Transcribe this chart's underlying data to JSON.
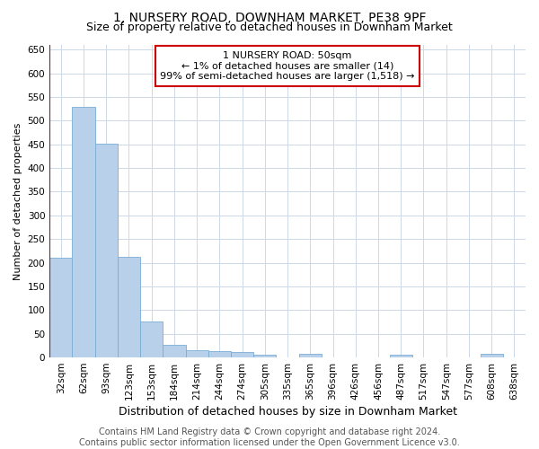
{
  "title": "1, NURSERY ROAD, DOWNHAM MARKET, PE38 9PF",
  "subtitle": "Size of property relative to detached houses in Downham Market",
  "xlabel": "Distribution of detached houses by size in Downham Market",
  "ylabel": "Number of detached properties",
  "categories": [
    "32sqm",
    "62sqm",
    "93sqm",
    "123sqm",
    "153sqm",
    "184sqm",
    "214sqm",
    "244sqm",
    "274sqm",
    "305sqm",
    "335sqm",
    "365sqm",
    "396sqm",
    "426sqm",
    "456sqm",
    "487sqm",
    "517sqm",
    "547sqm",
    "577sqm",
    "608sqm",
    "638sqm"
  ],
  "values": [
    210,
    530,
    452,
    213,
    76,
    27,
    16,
    14,
    11,
    5,
    0,
    8,
    0,
    0,
    0,
    6,
    0,
    0,
    0,
    7,
    0
  ],
  "bar_color": "#b8d0ea",
  "bar_edge_color": "#7aadd4",
  "vline_color": "#cc0000",
  "annotation_box_text": "1 NURSERY ROAD: 50sqm\n← 1% of detached houses are smaller (14)\n99% of semi-detached houses are larger (1,518) →",
  "box_edge_color": "#cc0000",
  "ylim": [
    0,
    660
  ],
  "yticks": [
    0,
    50,
    100,
    150,
    200,
    250,
    300,
    350,
    400,
    450,
    500,
    550,
    600,
    650
  ],
  "footer_text": "Contains HM Land Registry data © Crown copyright and database right 2024.\nContains public sector information licensed under the Open Government Licence v3.0.",
  "background_color": "#ffffff",
  "grid_color": "#cdd8e8",
  "title_fontsize": 10,
  "subtitle_fontsize": 9,
  "xlabel_fontsize": 9,
  "ylabel_fontsize": 8,
  "tick_fontsize": 7.5,
  "annotation_fontsize": 8,
  "footer_fontsize": 7
}
